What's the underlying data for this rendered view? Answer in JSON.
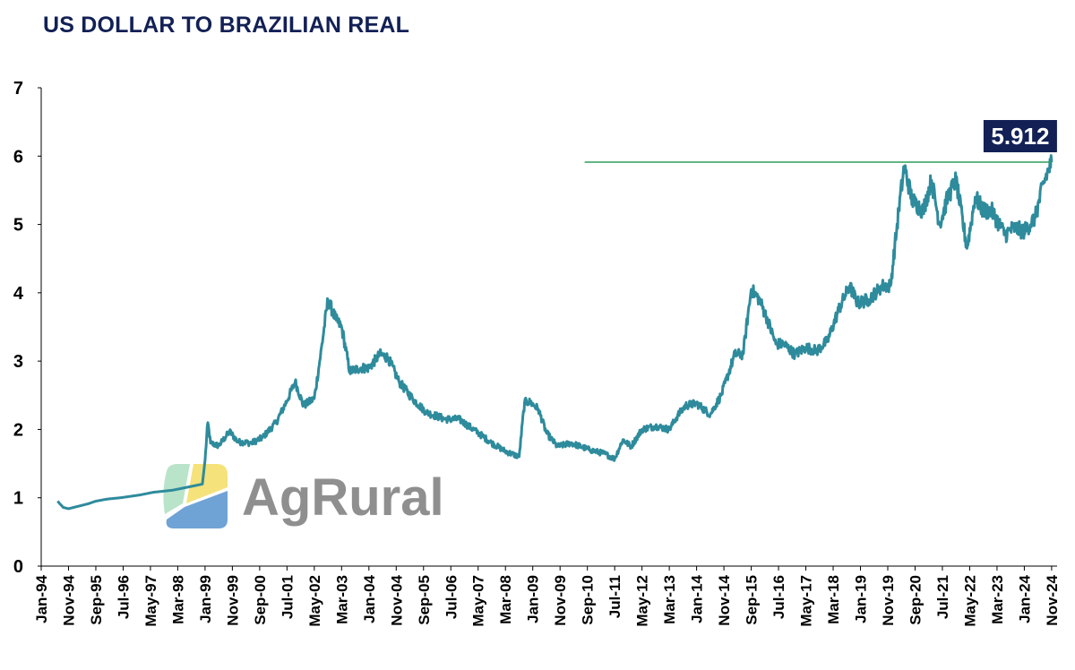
{
  "chart_data": {
    "type": "line",
    "title": "US DOLLAR TO BRAZILIAN REAL",
    "xlabel": "",
    "ylabel": "",
    "ylim": [
      0,
      7
    ],
    "yticks": [
      "0",
      "1",
      "2",
      "3",
      "4",
      "5",
      "6",
      "7"
    ],
    "xticks": [
      "Jan-94",
      "Nov-94",
      "Sep-95",
      "Jul-96",
      "May-97",
      "Mar-98",
      "Jan-99",
      "Nov-99",
      "Sep-00",
      "Jul-01",
      "May-02",
      "Mar-03",
      "Jan-04",
      "Nov-04",
      "Sep-05",
      "Jul-06",
      "May-07",
      "Mar-08",
      "Jan-09",
      "Nov-09",
      "Sep-10",
      "Jul-11",
      "May-12",
      "Mar-13",
      "Jan-14",
      "Nov-14",
      "Sep-15",
      "Jul-16",
      "May-17",
      "Mar-18",
      "Jan-19",
      "Nov-19",
      "Sep-20",
      "Jul-21",
      "May-22",
      "Mar-23",
      "Jan-24",
      "Nov-24"
    ],
    "grid": false,
    "legend": "none",
    "series": [
      {
        "color": "#2e8b9c",
        "x": [
          "1994-07",
          "1994-09",
          "1994-11",
          "1995-03",
          "1995-06",
          "1995-09",
          "1996-01",
          "1996-06",
          "1997-01",
          "1997-06",
          "1998-01",
          "1998-06",
          "1998-12",
          "1999-01",
          "1999-02",
          "1999-03",
          "1999-06",
          "1999-10",
          "2000-01",
          "2000-06",
          "2000-10",
          "2001-03",
          "2001-07",
          "2001-10",
          "2002-01",
          "2002-05",
          "2002-07",
          "2002-10",
          "2003-01",
          "2003-03",
          "2003-06",
          "2003-10",
          "2004-01",
          "2004-05",
          "2004-08",
          "2004-12",
          "2005-05",
          "2005-10",
          "2006-05",
          "2006-10",
          "2007-05",
          "2007-10",
          "2008-03",
          "2008-08",
          "2008-10",
          "2008-12",
          "2009-03",
          "2009-06",
          "2009-10",
          "2010-03",
          "2010-10",
          "2011-03",
          "2011-07",
          "2011-10",
          "2012-01",
          "2012-05",
          "2012-10",
          "2013-03",
          "2013-06",
          "2013-09",
          "2014-01",
          "2014-06",
          "2014-10",
          "2015-03",
          "2015-06",
          "2015-09",
          "2015-12",
          "2016-03",
          "2016-06",
          "2016-09",
          "2017-01",
          "2017-05",
          "2017-09",
          "2018-01",
          "2018-05",
          "2018-09",
          "2018-12",
          "2019-04",
          "2019-09",
          "2019-12",
          "2020-03",
          "2020-05",
          "2020-08",
          "2020-12",
          "2021-03",
          "2021-06",
          "2021-09",
          "2021-12",
          "2022-04",
          "2022-07",
          "2022-10",
          "2023-01",
          "2023-06",
          "2023-09",
          "2024-01",
          "2024-05",
          "2024-08",
          "2024-11"
        ],
        "values": [
          0.95,
          0.86,
          0.84,
          0.88,
          0.91,
          0.95,
          0.98,
          1.0,
          1.04,
          1.08,
          1.11,
          1.15,
          1.2,
          1.55,
          2.1,
          1.8,
          1.76,
          1.97,
          1.82,
          1.8,
          1.88,
          2.1,
          2.42,
          2.7,
          2.35,
          2.45,
          3.0,
          3.9,
          3.6,
          3.5,
          2.85,
          2.9,
          2.9,
          3.1,
          3.05,
          2.7,
          2.45,
          2.25,
          2.15,
          2.15,
          1.95,
          1.8,
          1.68,
          1.6,
          2.4,
          2.4,
          2.3,
          1.95,
          1.75,
          1.8,
          1.7,
          1.65,
          1.57,
          1.85,
          1.75,
          2.0,
          2.05,
          2.0,
          2.2,
          2.35,
          2.38,
          2.22,
          2.5,
          3.1,
          3.1,
          4.05,
          3.9,
          3.6,
          3.25,
          3.25,
          3.1,
          3.2,
          3.15,
          3.3,
          3.75,
          4.1,
          3.85,
          3.9,
          4.1,
          4.1,
          5.2,
          5.85,
          5.35,
          5.2,
          5.65,
          5.0,
          5.4,
          5.65,
          4.65,
          5.4,
          5.2,
          5.2,
          4.85,
          4.95,
          4.9,
          5.1,
          5.6,
          5.912
        ]
      }
    ],
    "reference_line": {
      "value": 5.912,
      "from": "2010-08",
      "to": "2024-11",
      "color": "#2e9e5b"
    },
    "annotations": [
      {
        "text": "5.912",
        "at_x": "2024-11",
        "at_y": 5.912,
        "bg": "#122055"
      }
    ]
  },
  "watermark": {
    "text": "AgRural",
    "icon": "agrural-logo-icon"
  },
  "colors": {
    "title": "#122055",
    "axis": "#000000",
    "line": "#2e8b9c",
    "reference": "#2e9e5b",
    "callout": "#122055",
    "watermark_text": "#8a8a8a"
  }
}
